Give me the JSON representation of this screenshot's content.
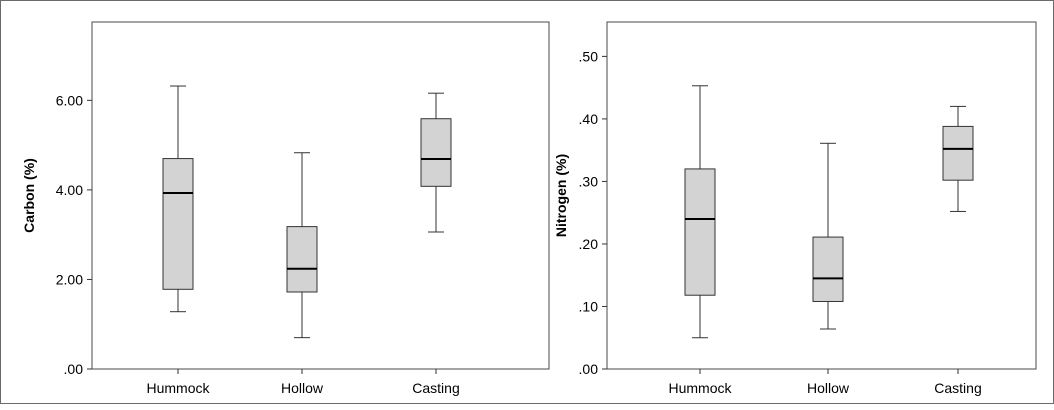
{
  "chart_data": [
    {
      "type": "boxplot",
      "title": "",
      "xlabel": "",
      "ylabel": "Carbon (%)",
      "ylim": [
        0,
        7.75
      ],
      "yticks": [
        0,
        2,
        4,
        6
      ],
      "ytick_labels": [
        ".00",
        "2.00",
        "4.00",
        "6.00"
      ],
      "categories": [
        "Hummock",
        "Hollow",
        "Casting"
      ],
      "boxes": [
        {
          "category": "Hummock",
          "min": 1.28,
          "q1": 1.78,
          "median": 3.93,
          "q3": 4.7,
          "max": 6.32
        },
        {
          "category": "Hollow",
          "min": 0.7,
          "q1": 1.72,
          "median": 2.24,
          "q3": 3.18,
          "max": 4.83
        },
        {
          "category": "Casting",
          "min": 3.06,
          "q1": 4.08,
          "median": 4.69,
          "q3": 5.59,
          "max": 6.16
        }
      ],
      "box_color": "#d3d3d3",
      "grid": false
    },
    {
      "type": "boxplot",
      "title": "",
      "xlabel": "",
      "ylabel": "Nitrogen (%)",
      "ylim": [
        0,
        0.555
      ],
      "yticks": [
        0,
        0.1,
        0.2,
        0.3,
        0.4,
        0.5
      ],
      "ytick_labels": [
        ".00",
        ".10",
        ".20",
        ".30",
        ".40",
        ".50"
      ],
      "categories": [
        "Hummock",
        "Hollow",
        "Casting"
      ],
      "boxes": [
        {
          "category": "Hummock",
          "min": 0.05,
          "q1": 0.118,
          "median": 0.24,
          "q3": 0.32,
          "max": 0.453
        },
        {
          "category": "Hollow",
          "min": 0.064,
          "q1": 0.108,
          "median": 0.145,
          "q3": 0.211,
          "max": 0.361
        },
        {
          "category": "Casting",
          "min": 0.252,
          "q1": 0.302,
          "median": 0.352,
          "q3": 0.388,
          "max": 0.42
        }
      ],
      "box_color": "#d3d3d3",
      "grid": false
    }
  ]
}
